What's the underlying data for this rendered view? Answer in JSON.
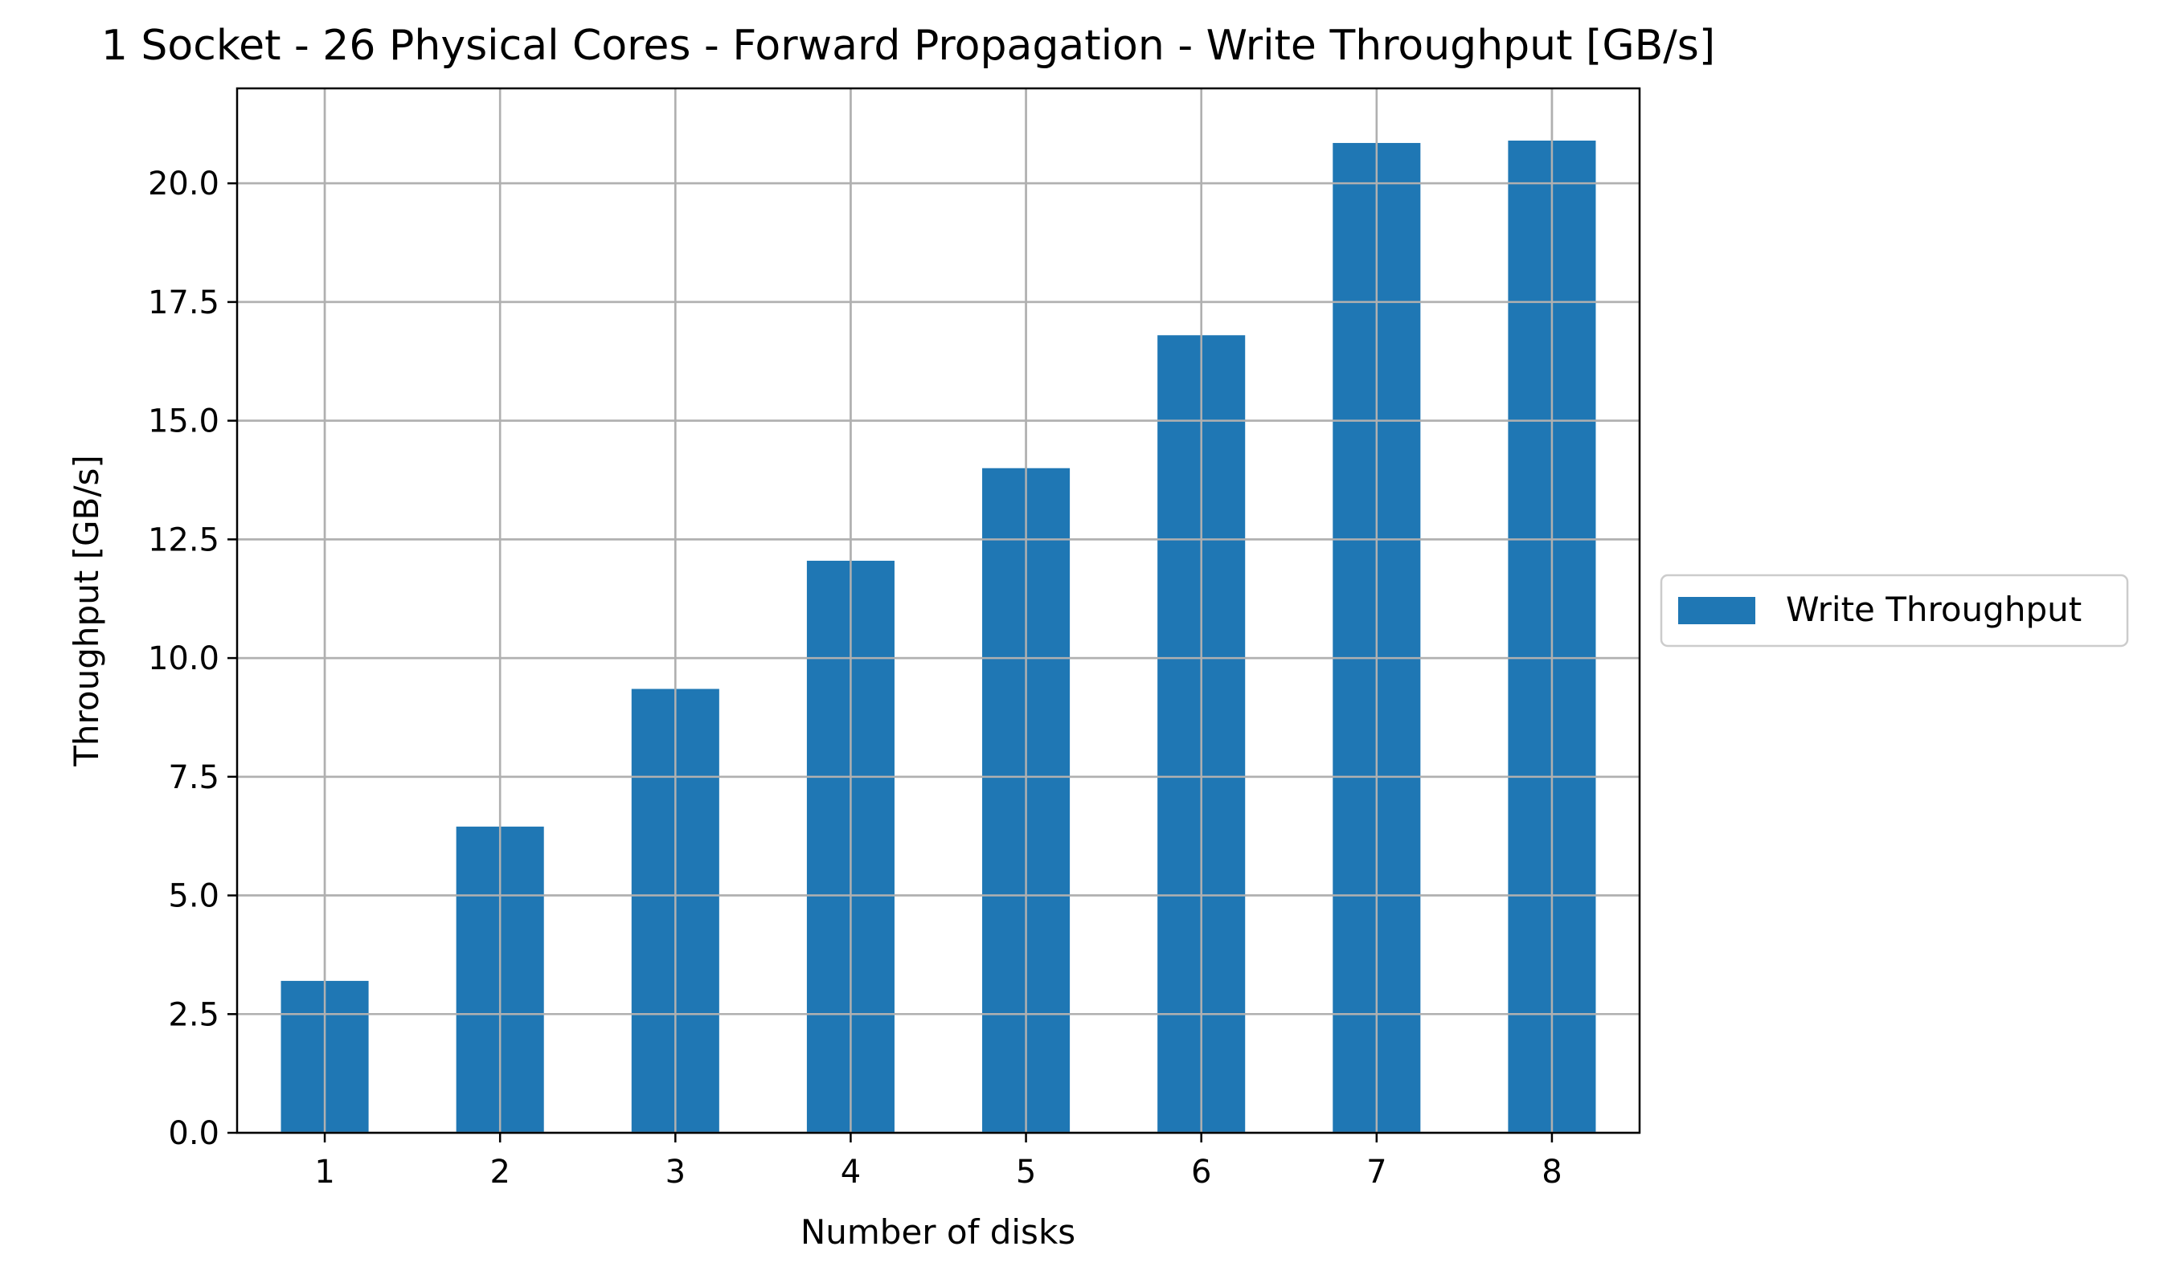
{
  "chart_data": {
    "type": "bar",
    "title": "1 Socket - 26 Physical Cores - Forward Propagation - Write Throughput [GB/s]",
    "xlabel": "Number of disks",
    "ylabel": "Throughput [GB/s]",
    "categories": [
      "1",
      "2",
      "3",
      "4",
      "5",
      "6",
      "7",
      "8"
    ],
    "series": [
      {
        "name": "Write Throughput",
        "color": "#1f77b4",
        "values": [
          3.2,
          6.45,
          9.35,
          12.05,
          14.0,
          16.8,
          20.85,
          20.9
        ]
      }
    ],
    "ylim": [
      0,
      22
    ],
    "yticks": [
      "0.0",
      "2.5",
      "5.0",
      "7.5",
      "10.0",
      "12.5",
      "15.0",
      "17.5",
      "20.0"
    ],
    "ytick_values": [
      0,
      2.5,
      5,
      7.5,
      10,
      12.5,
      15,
      17.5,
      20
    ],
    "grid": true,
    "legend_position": "right-outside-center",
    "colors": {
      "bar": "#1f77b4",
      "grid": "#b0b0b0",
      "axis": "#000000"
    }
  }
}
